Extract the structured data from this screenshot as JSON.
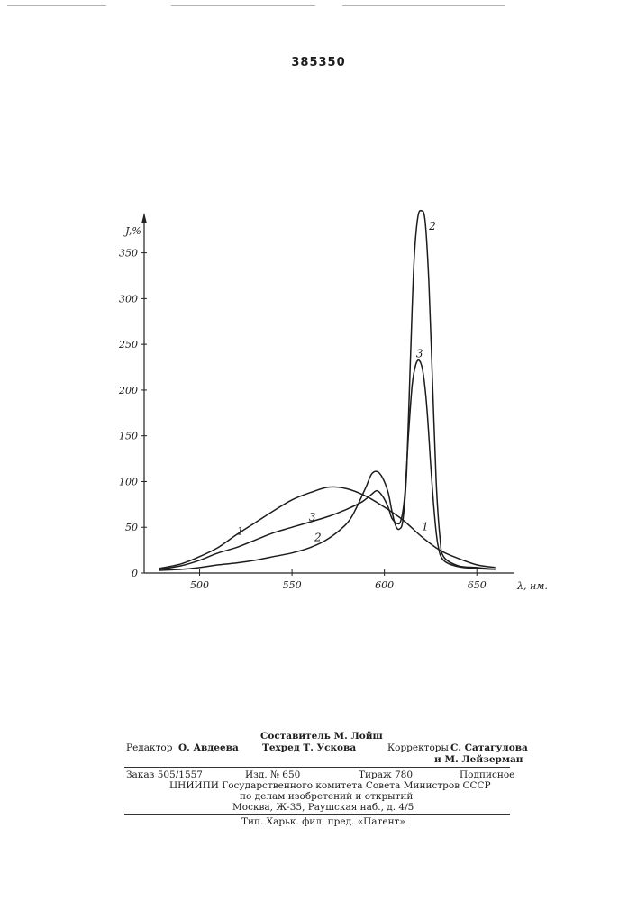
{
  "document": {
    "number": "385350"
  },
  "chart_data": {
    "type": "line",
    "xlabel": "λ, нм.",
    "ylabel": "J,%",
    "xlim": [
      470,
      665
    ],
    "ylim": [
      0,
      390
    ],
    "x_ticks": [
      500,
      550,
      600,
      650
    ],
    "y_ticks": [
      0,
      50,
      100,
      150,
      200,
      250,
      300,
      350
    ],
    "x_tick_labels": [
      "500",
      "550",
      "600",
      "650"
    ],
    "y_tick_labels": [
      "0",
      "50",
      "100",
      "150",
      "200",
      "250",
      "300",
      "350"
    ],
    "grid": false,
    "series": [
      {
        "name": "1",
        "label_position": [
          [
            522,
            42
          ],
          [
            622,
            47
          ]
        ],
        "points": [
          [
            478,
            5
          ],
          [
            490,
            10
          ],
          [
            500,
            18
          ],
          [
            510,
            28
          ],
          [
            520,
            42
          ],
          [
            530,
            55
          ],
          [
            540,
            68
          ],
          [
            550,
            80
          ],
          [
            560,
            88
          ],
          [
            570,
            94
          ],
          [
            580,
            92
          ],
          [
            590,
            84
          ],
          [
            600,
            72
          ],
          [
            610,
            58
          ],
          [
            620,
            40
          ],
          [
            630,
            25
          ],
          [
            640,
            16
          ],
          [
            650,
            9
          ],
          [
            660,
            6
          ]
        ]
      },
      {
        "name": "2",
        "label_position": [
          [
            564,
            35
          ],
          [
            626,
            375
          ]
        ],
        "points": [
          [
            478,
            3
          ],
          [
            490,
            4
          ],
          [
            500,
            6
          ],
          [
            510,
            9
          ],
          [
            520,
            11
          ],
          [
            530,
            14
          ],
          [
            540,
            18
          ],
          [
            550,
            22
          ],
          [
            560,
            28
          ],
          [
            570,
            38
          ],
          [
            580,
            55
          ],
          [
            585,
            72
          ],
          [
            590,
            94
          ],
          [
            593,
            108
          ],
          [
            596,
            111
          ],
          [
            599,
            104
          ],
          [
            602,
            88
          ],
          [
            604,
            68
          ],
          [
            606,
            52
          ],
          [
            608,
            48
          ],
          [
            610,
            58
          ],
          [
            612,
            110
          ],
          [
            614,
            230
          ],
          [
            616,
            340
          ],
          [
            618,
            388
          ],
          [
            620,
            396
          ],
          [
            622,
            385
          ],
          [
            624,
            320
          ],
          [
            626,
            210
          ],
          [
            628,
            100
          ],
          [
            630,
            40
          ],
          [
            632,
            18
          ],
          [
            640,
            8
          ],
          [
            650,
            6
          ],
          [
            660,
            4
          ]
        ]
      },
      {
        "name": "3",
        "label_position": [
          [
            561,
            57
          ],
          [
            619,
            236
          ]
        ],
        "points": [
          [
            478,
            4
          ],
          [
            490,
            8
          ],
          [
            500,
            14
          ],
          [
            510,
            22
          ],
          [
            520,
            28
          ],
          [
            530,
            36
          ],
          [
            540,
            44
          ],
          [
            550,
            50
          ],
          [
            560,
            56
          ],
          [
            570,
            62
          ],
          [
            580,
            70
          ],
          [
            588,
            78
          ],
          [
            593,
            86
          ],
          [
            596,
            90
          ],
          [
            599,
            84
          ],
          [
            602,
            72
          ],
          [
            604,
            60
          ],
          [
            607,
            54
          ],
          [
            609,
            58
          ],
          [
            611,
            85
          ],
          [
            613,
            150
          ],
          [
            615,
            205
          ],
          [
            617,
            228
          ],
          [
            619,
            232
          ],
          [
            621,
            218
          ],
          [
            623,
            180
          ],
          [
            625,
            120
          ],
          [
            627,
            65
          ],
          [
            629,
            30
          ],
          [
            632,
            14
          ],
          [
            640,
            7
          ],
          [
            650,
            5
          ],
          [
            660,
            4
          ]
        ]
      }
    ]
  },
  "imprint": {
    "compiler": "Составитель М. Лойш",
    "editor_role": "Редактор",
    "editor_name": "О. Авдеева",
    "techred": "Техред Т. Ускова",
    "correctors_role": "Корректоры",
    "correctors_name1": "С. Сатагулова",
    "correctors_name2": "и М. Лейзерман",
    "order": "Заказ 505/1557",
    "publication": "Изд. № 650",
    "print_run": "Тираж 780",
    "subscription": "Подписное",
    "org_line1": "ЦНИИПИ Государственного комитета Совета Министров СССР",
    "org_line2": "по делам изобретений и открытий",
    "address": "Москва, Ж-35, Раушская наб., д. 4/5",
    "printer": "Тип. Харьк. фил. пред. «Патент»"
  }
}
